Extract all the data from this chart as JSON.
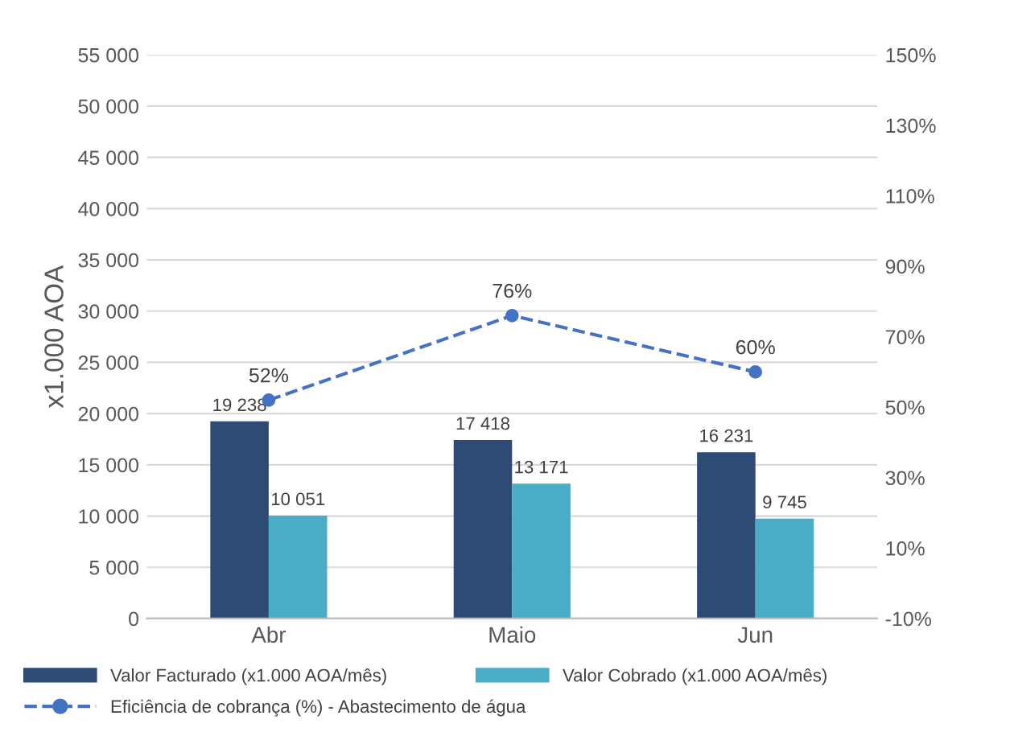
{
  "chart_data": {
    "type": "bar",
    "ylabel": "x1.000 AOA",
    "categories": [
      "Abr",
      "Maio",
      "Jun"
    ],
    "series": [
      {
        "name": "Valor Facturado (x1.000 AOA/mês)",
        "color": "#2e4b75",
        "values": [
          19238,
          17418,
          16231
        ],
        "value_labels": [
          "19 238",
          "17 418",
          "16 231"
        ]
      },
      {
        "name": "Valor Cobrado (x1.000 AOA/mês)",
        "color": "#4bacc6",
        "values": [
          10051,
          13171,
          9745
        ],
        "value_labels": [
          "10 051",
          "13 171",
          "9 745"
        ]
      },
      {
        "name": "Eficiência de cobrança (%) - Abastecimento de água",
        "type": "line",
        "axis": "y2",
        "color": "#4472c4",
        "values": [
          52,
          76,
          60
        ],
        "value_labels": [
          "52%",
          "76%",
          "60%"
        ],
        "marker": "circle",
        "line_style": "dashed"
      }
    ],
    "ylim": [
      0,
      55000
    ],
    "yticks": [
      0,
      {
        "value": 5000,
        "label": "5 000"
      },
      {
        "value": 10000,
        "label": "10 000"
      },
      {
        "value": 15000,
        "label": "15 000"
      },
      {
        "value": 20000,
        "label": "20 000"
      },
      {
        "value": 25000,
        "label": "25 000"
      },
      {
        "value": 30000,
        "label": "30 000"
      },
      {
        "value": 35000,
        "label": "35 000"
      },
      {
        "value": 40000,
        "label": "40 000"
      },
      {
        "value": 45000,
        "label": "45 000"
      },
      {
        "value": 50000,
        "label": "50 000"
      },
      {
        "value": 55000,
        "label": "55 000"
      }
    ],
    "y2lim": [
      -10,
      150
    ],
    "y2ticks": [
      {
        "value": -10,
        "label": "-10%"
      },
      {
        "value": 10,
        "label": "10%"
      },
      {
        "value": 30,
        "label": "30%"
      },
      {
        "value": 50,
        "label": "50%"
      },
      {
        "value": 70,
        "label": "70%"
      },
      {
        "value": 90,
        "label": "90%"
      },
      {
        "value": 110,
        "label": "110%"
      },
      {
        "value": 130,
        "label": "130%"
      },
      {
        "value": 150,
        "label": "150%"
      }
    ],
    "grid": "y",
    "legend": "bottom"
  }
}
